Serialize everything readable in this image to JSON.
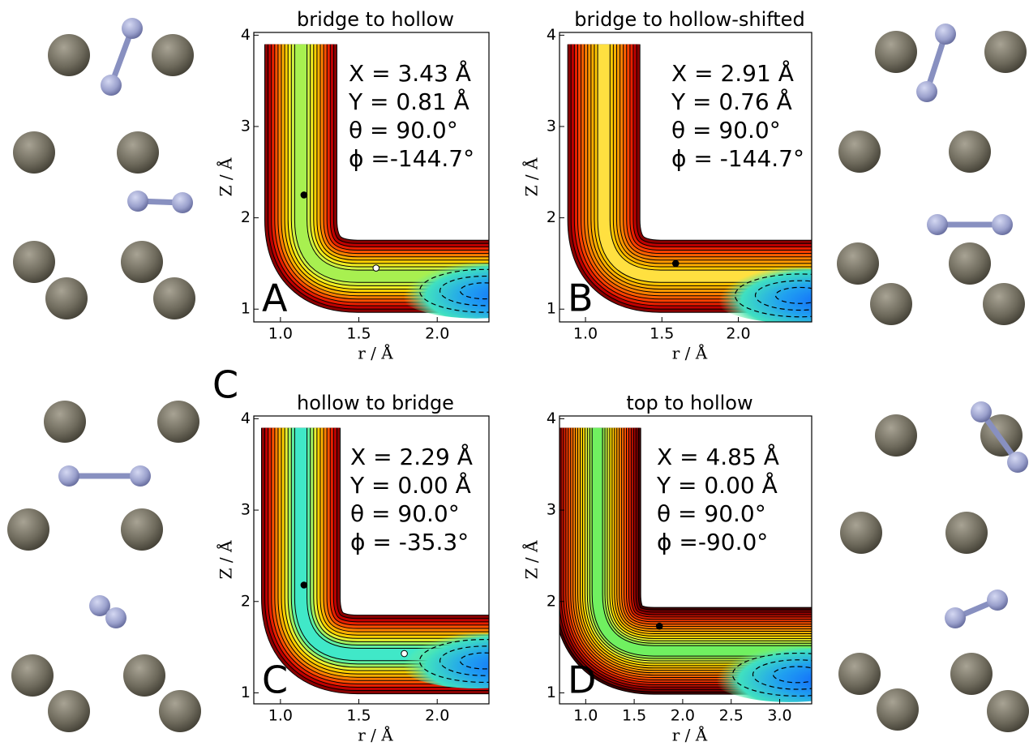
{
  "extra_label": "C",
  "chart_data": [
    {
      "type": "contour",
      "title": "bridge to hollow",
      "xlabel": "r / Å",
      "ylabel": "Z / Å",
      "panel_label": "A",
      "annotations": [
        "X = 3.43 Å",
        "Y = 0.81 Å",
        "θ = 90.0°",
        "ϕ =-144.7°"
      ],
      "xlim": [
        0.83,
        2.33
      ],
      "ylim": [
        0.86,
        4.03
      ],
      "xticks": [
        {
          "value": 1.0,
          "label": "1.0"
        },
        {
          "value": 1.5,
          "label": "1.5"
        },
        {
          "value": 2.0,
          "label": "2.0"
        }
      ],
      "yticks": [
        1,
        2,
        3,
        4
      ],
      "x": [
        1.15,
        1.61
      ],
      "values": [
        2.25,
        1.45
      ],
      "marker_colors": [
        "#000000",
        "#ffffff"
      ]
    },
    {
      "type": "contour",
      "title": "bridge to hollow-shifted",
      "xlabel": "r / Å",
      "ylabel": "Z / Å",
      "panel_label": "B",
      "annotations": [
        "X = 2.91 Å",
        "Y = 0.76 Å",
        "θ = 90.0°",
        "ϕ = -144.7°"
      ],
      "xlim": [
        0.83,
        2.48
      ],
      "ylim": [
        0.86,
        4.03
      ],
      "xticks": [
        {
          "value": 1.0,
          "label": "1.0"
        },
        {
          "value": 1.5,
          "label": "1.5"
        },
        {
          "value": 2.0,
          "label": "2.0"
        }
      ],
      "yticks": [
        1,
        2,
        3,
        4
      ],
      "x": [
        1.59
      ],
      "values": [
        1.5
      ],
      "marker_colors": [
        "#000000"
      ]
    },
    {
      "type": "contour",
      "title": "hollow to bridge",
      "xlabel": "r / Å",
      "ylabel": "Z / Å",
      "panel_label": "C",
      "annotations": [
        "X = 2.29 Å",
        "Y = 0.00 Å",
        "θ = 90.0°",
        "ϕ = -35.3°"
      ],
      "xlim": [
        0.83,
        2.33
      ],
      "ylim": [
        0.88,
        4.03
      ],
      "xticks": [
        {
          "value": 1.0,
          "label": "1.0"
        },
        {
          "value": 1.5,
          "label": "1.5"
        },
        {
          "value": 2.0,
          "label": "2.0"
        }
      ],
      "yticks": [
        1,
        2,
        3,
        4
      ],
      "x": [
        1.15,
        1.79
      ],
      "values": [
        2.18,
        1.43
      ],
      "marker_colors": [
        "#000000",
        "#ffffff"
      ]
    },
    {
      "type": "contour",
      "title": "top to hollow",
      "xlabel": "r / Å",
      "ylabel": "Z / Å",
      "panel_label": "D",
      "annotations": [
        "X = 4.85 Å",
        "Y = 0.00 Å",
        "θ = 90.0°",
        "ϕ =-90.0°"
      ],
      "xlim": [
        0.73,
        3.33
      ],
      "ylim": [
        0.88,
        4.03
      ],
      "xticks": [
        {
          "value": 1.0,
          "label": "1.0"
        },
        {
          "value": 1.5,
          "label": "1.5"
        },
        {
          "value": 2.0,
          "label": "2.0"
        },
        {
          "value": 2.5,
          "label": "2.5"
        },
        {
          "value": 3.0,
          "label": "3.0"
        }
      ],
      "yticks": [
        1,
        2,
        3,
        4
      ],
      "x": [
        1.76
      ],
      "values": [
        1.73
      ],
      "marker_colors": [
        "#000000"
      ]
    }
  ]
}
